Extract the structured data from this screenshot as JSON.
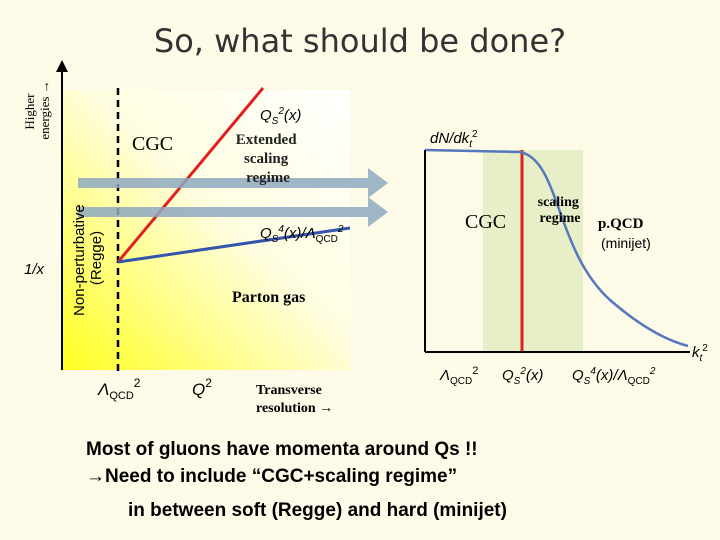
{
  "title": "So, what should be done?",
  "left": {
    "energy_axis": [
      "Higher",
      "energies →"
    ],
    "regge": [
      "Non-perturbative",
      "(Regge)"
    ],
    "inv_x": "1/x",
    "cgc": "CGC",
    "qs2": [
      "Q",
      "S",
      "2",
      "(x)"
    ],
    "extended": [
      "Extended",
      "scaling",
      "regime"
    ],
    "qs4": [
      "Q",
      "S",
      "4",
      "(x)/Λ",
      "QCD",
      "2"
    ],
    "parton_gas": "Parton gas",
    "lambda": [
      "Λ",
      "QCD",
      "2"
    ],
    "q2": [
      "Q",
      "2"
    ],
    "transverse": [
      "Transverse",
      "resolution →"
    ]
  },
  "right": {
    "ylabel": [
      "dN/dk",
      "t",
      "2"
    ],
    "cgc": "CGC",
    "scaling": [
      "scaling",
      "regime"
    ],
    "pqcd": [
      "p.QCD",
      "(minijet)"
    ],
    "xlabel": [
      "k",
      "t",
      "2"
    ],
    "lambda": [
      "Λ",
      "QCD",
      "2"
    ],
    "qs2": [
      "Q",
      "S",
      "2",
      "(x)"
    ],
    "qs4": [
      "Q",
      "S",
      "4",
      "(x)/Λ",
      "QCD",
      "2"
    ]
  },
  "notes": [
    "Most of gluons have momenta around Qs !!",
    "→Need to include “CGC+scaling regime”",
    "in between soft (Regge) and hard (minijet)"
  ]
}
